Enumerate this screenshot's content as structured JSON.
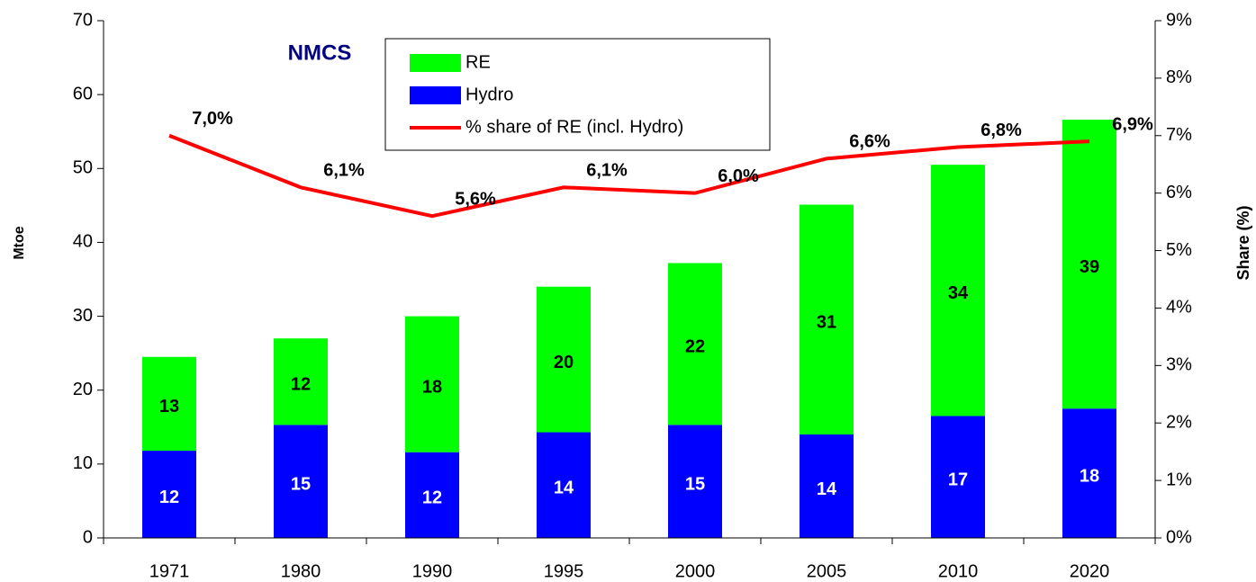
{
  "chart_data": {
    "type": "bar",
    "stacked": true,
    "annotation": "NMCS",
    "y_label": "Mtoe",
    "y2_label": "Share (%)",
    "categories": [
      "1971",
      "1980",
      "1990",
      "1995",
      "2000",
      "2005",
      "2010",
      "2020"
    ],
    "series": [
      {
        "name": "Hydro",
        "type": "bar",
        "color": "#0000ff",
        "values": [
          11.8,
          15.3,
          11.6,
          14.3,
          15.3,
          14.0,
          16.5,
          17.5
        ],
        "value_labels": [
          "12",
          "15",
          "12",
          "14",
          "15",
          "14",
          "17",
          "18"
        ]
      },
      {
        "name": "RE",
        "type": "bar",
        "color": "#00ff00",
        "values": [
          12.7,
          11.7,
          18.4,
          19.7,
          21.9,
          31.1,
          34.0,
          39.1
        ],
        "value_labels": [
          "13",
          "12",
          "18",
          "20",
          "22",
          "31",
          "34",
          "39"
        ]
      },
      {
        "name": "% share of RE (incl. Hydro)",
        "type": "line",
        "axis": "y2",
        "color": "#ff0000",
        "values": [
          7.0,
          6.1,
          5.6,
          6.1,
          6.0,
          6.6,
          6.8,
          6.9
        ],
        "value_labels": [
          "7,0%",
          "6,1%",
          "5,6%",
          "6,1%",
          "6,0%",
          "6,6%",
          "6,8%",
          "6,9%"
        ]
      }
    ],
    "ylim": [
      0,
      70
    ],
    "yticks": [
      0,
      10,
      20,
      30,
      40,
      50,
      60,
      70
    ],
    "y2lim": [
      0,
      9
    ],
    "y2ticks": [
      {
        "value": 0,
        "label": "0%"
      },
      {
        "value": 1,
        "label": "1%"
      },
      {
        "value": 2,
        "label": "2%"
      },
      {
        "value": 3,
        "label": "3%"
      },
      {
        "value": 4,
        "label": "4%"
      },
      {
        "value": 5,
        "label": "5%"
      },
      {
        "value": 6,
        "label": "6%"
      },
      {
        "value": 7,
        "label": "7%"
      },
      {
        "value": 8,
        "label": "8%"
      },
      {
        "value": 9,
        "label": "9%"
      }
    ],
    "grid": false
  }
}
